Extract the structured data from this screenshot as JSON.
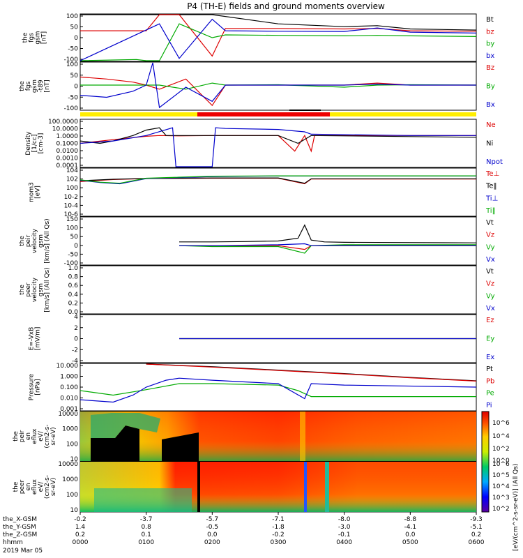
{
  "title": "P4 (TH-E) fields and ground moments overview",
  "time_axis": {
    "row_labels": [
      "the_X-GSM",
      "the_Y-GSM",
      "the_Z-GSM",
      "hhmm"
    ],
    "date": "2019 Mar 05",
    "ticks": [
      {
        "x": "-0.2",
        "y": "1.4",
        "z": "0.2",
        "t": "0000"
      },
      {
        "x": "-3.7",
        "y": "0.8",
        "z": "0.1",
        "t": "0100"
      },
      {
        "x": "-5.7",
        "y": "-0.5",
        "z": "0.0",
        "t": "0200"
      },
      {
        "x": "-7.1",
        "y": "-1.8",
        "z": "-0.2",
        "t": "0300"
      },
      {
        "x": "-8.0",
        "y": "-3.0",
        "z": "-0.1",
        "t": "0400"
      },
      {
        "x": "-8.8",
        "y": "-4.1",
        "z": "0.0",
        "t": "0500"
      },
      {
        "x": "-9.3",
        "y": "-5.1",
        "z": "0.2",
        "t": "0600"
      }
    ]
  },
  "colorbar": {
    "label": "[eV/(cm^2-s-sr-eV)] (All Qs)",
    "ticks1": [
      "10^6",
      "10^4",
      "10^2",
      "10^0"
    ],
    "ticks2": [
      "10^6",
      "10^5",
      "10^4",
      "10^3",
      "10^2"
    ]
  },
  "chart_data": [
    {
      "type": "line",
      "id": "fgs_gsm",
      "ylabel": [
        "the",
        "fgs",
        "gsm",
        "[nT]"
      ],
      "yticks": [
        "100",
        "50",
        "0",
        "-50",
        "-100"
      ],
      "ylim": [
        -100,
        100
      ],
      "series": [
        {
          "name": "Bt",
          "color": "#000000",
          "x": [
            0.0,
            1.0,
            1.2,
            1.5,
            2.0,
            3.0,
            4.0,
            4.5,
            5.0,
            6.0
          ],
          "values": [
            100,
            100,
            100,
            100,
            100,
            60,
            48,
            52,
            38,
            33
          ]
        },
        {
          "name": "bz",
          "color": "#dd0000",
          "x": [
            0.0,
            1.0,
            1.2,
            1.5,
            2.0,
            2.2,
            3.0,
            4.0,
            4.5,
            5.0,
            6.0
          ],
          "values": [
            30,
            30,
            100,
            100,
            -80,
            40,
            40,
            38,
            40,
            30,
            28
          ]
        },
        {
          "name": "by",
          "color": "#00aa00",
          "x": [
            0.0,
            0.85,
            1.0,
            1.2,
            1.5,
            2.0,
            2.2,
            3.0,
            4.0,
            4.5,
            5.0,
            6.0
          ],
          "values": [
            -100,
            -95,
            -100,
            -100,
            60,
            0,
            12,
            10,
            8,
            10,
            8,
            5
          ]
        },
        {
          "name": "bx",
          "color": "#0000cc",
          "x": [
            0.0,
            1.2,
            1.5,
            2.0,
            2.2,
            3.0,
            4.0,
            4.5,
            5.0,
            6.0
          ],
          "values": [
            -100,
            60,
            -90,
            80,
            30,
            28,
            27,
            42,
            24,
            20
          ]
        }
      ]
    },
    {
      "type": "line",
      "id": "fgs_gsm_dipole",
      "ylabel": [
        "the",
        "fgs",
        "gsm",
        "-t89",
        "[nT]"
      ],
      "yticks": [
        "100",
        "50",
        "0",
        "-50",
        "-100"
      ],
      "ylim": [
        -120,
        110
      ],
      "series": [
        {
          "name": "Bz",
          "color": "#dd0000",
          "x": [
            0.0,
            0.4,
            0.8,
            1.0,
            1.2,
            1.6,
            2.0,
            2.2,
            3.0,
            4.0,
            4.5,
            5.0,
            6.0
          ],
          "values": [
            40,
            30,
            15,
            0,
            -20,
            30,
            -100,
            0,
            0,
            0,
            10,
            0,
            0
          ]
        },
        {
          "name": "By",
          "color": "#00aa00",
          "x": [
            0.0,
            0.8,
            1.0,
            1.2,
            1.6,
            2.0,
            2.2,
            3.0,
            4.0,
            4.5,
            5.0,
            6.0
          ],
          "values": [
            0,
            0,
            0,
            0,
            -20,
            10,
            0,
            2,
            -10,
            0,
            2,
            0
          ]
        },
        {
          "name": "Bx",
          "color": "#0000cc",
          "x": [
            0.0,
            0.4,
            0.8,
            1.0,
            1.1,
            1.2,
            1.6,
            2.0,
            2.2,
            3.0,
            4.0,
            4.5,
            5.0,
            6.0
          ],
          "values": [
            -50,
            -60,
            -30,
            0,
            110,
            -110,
            -10,
            -80,
            0,
            0,
            0,
            5,
            0,
            0
          ]
        }
      ]
    },
    {
      "type": "line",
      "id": "density",
      "ylabel": [
        "Density",
        "[1/cc]",
        "[cm-3]"
      ],
      "yticks": [
        "100.0000",
        "10.0000",
        "1.0000",
        "0.1000",
        "0.0100",
        "0.0010",
        "0.0001"
      ],
      "ylog": true,
      "ylim": [
        0.0001,
        100
      ],
      "series": [
        {
          "name": "Ne",
          "color": "#dd0000",
          "x": [
            0.0,
            0.5,
            1.0,
            1.2,
            1.5,
            2.0,
            3.0,
            3.25,
            3.4,
            3.5,
            3.55,
            6.0
          ],
          "values": [
            0.1,
            0.3,
            0.8,
            1.0,
            0.9,
            1.0,
            1.0,
            0.01,
            1.0,
            0.01,
            1.0,
            1.0
          ]
        },
        {
          "name": "Ni",
          "color": "#000000",
          "x": [
            0.0,
            0.3,
            0.5,
            0.8,
            1.0,
            1.2,
            1.3,
            1.5,
            2.0,
            3.0,
            3.3,
            3.5,
            6.0
          ],
          "values": [
            0.2,
            0.1,
            0.2,
            1.0,
            5.0,
            10.0,
            1.0,
            1.0,
            1.0,
            1.0,
            0.1,
            1.0,
            0.6
          ]
        },
        {
          "name": "Npot",
          "color": "#0000cc",
          "x": [
            0.0,
            0.5,
            1.0,
            1.4,
            1.45,
            2.0,
            2.05,
            2.2,
            3.0,
            3.4,
            3.5,
            4.0,
            5.0,
            6.0
          ],
          "values": [
            0.1,
            0.2,
            1.0,
            10.0,
            0.0001,
            0.0001,
            10.0,
            8.0,
            6.0,
            3.0,
            1.5,
            1.3,
            1.0,
            1.0
          ]
        }
      ]
    },
    {
      "type": "line",
      "id": "temperature",
      "ylabel": [
        "mom3",
        "[eV]"
      ],
      "yticks": [
        "10^4",
        "10^2",
        "10^0",
        "10^-2",
        "10^-4",
        "10^-6"
      ],
      "ylog": true,
      "ylim": [
        1e-06,
        100000
      ],
      "series": [
        {
          "name": "Te⊥",
          "color": "#dd0000",
          "x": [
            0.0,
            0.5,
            1.0,
            2.0,
            3.0,
            3.4,
            3.5,
            6.0
          ],
          "values": [
            100,
            300,
            500,
            600,
            600,
            30,
            400,
            400
          ]
        },
        {
          "name": "Te‖",
          "color": "#000000",
          "x": [
            0.0,
            0.5,
            1.0,
            2.0,
            3.0,
            3.4,
            3.5,
            6.0
          ],
          "values": [
            150,
            350,
            550,
            700,
            700,
            40,
            450,
            450
          ]
        },
        {
          "name": "Ti⊥",
          "color": "#0000cc",
          "x": [
            0.0,
            0.3,
            0.6,
            1.0,
            2.0,
            3.0,
            3.5,
            6.0
          ],
          "values": [
            200,
            60,
            30,
            500,
            1500,
            2000,
            2000,
            2000
          ]
        },
        {
          "name": "Ti‖",
          "color": "#00aa00",
          "x": [
            0.0,
            0.3,
            0.6,
            1.0,
            2.0,
            3.0,
            3.5,
            6.0
          ],
          "values": [
            250,
            70,
            40,
            600,
            1800,
            2200,
            2200,
            2200
          ]
        }
      ]
    },
    {
      "type": "line",
      "id": "peir_velocity",
      "ylabel": [
        "the",
        "peir",
        "velocity",
        "gsm",
        "[km/s] (All Qs)"
      ],
      "yticks": [
        "150",
        "100",
        "50",
        "0",
        "-50",
        "-100"
      ],
      "ylim": [
        -100,
        150
      ],
      "series": [
        {
          "name": "Vt",
          "color": "#000000",
          "x": [
            1.5,
            2.0,
            2.5,
            3.0,
            3.3,
            3.4,
            3.5,
            3.7,
            4.0,
            6.0
          ],
          "values": [
            20,
            20,
            22,
            25,
            40,
            110,
            30,
            20,
            18,
            15
          ]
        },
        {
          "name": "Vz",
          "color": "#dd0000",
          "x": [
            1.5,
            2.0,
            3.0,
            3.4,
            3.5,
            4.0,
            6.0
          ],
          "values": [
            0,
            0,
            0,
            -20,
            0,
            0,
            0
          ]
        },
        {
          "name": "Vy",
          "color": "#00aa00",
          "x": [
            1.5,
            2.0,
            3.0,
            3.4,
            3.5,
            4.0,
            6.0
          ],
          "values": [
            0,
            -5,
            -5,
            -40,
            0,
            5,
            5
          ]
        },
        {
          "name": "Vx",
          "color": "#0000cc",
          "x": [
            1.5,
            2.0,
            3.0,
            3.4,
            3.5,
            4.0,
            6.0
          ],
          "values": [
            0,
            0,
            5,
            10,
            0,
            0,
            0
          ]
        }
      ]
    },
    {
      "type": "line",
      "id": "peer_velocity",
      "ylabel": [
        "the",
        "peer",
        "velocity",
        "gsm",
        "[km/s] (All Qs)"
      ],
      "yticks": [
        "1.0",
        "0.8",
        "0.6",
        "0.4",
        "0.2",
        "0.0"
      ],
      "ylim": [
        0,
        1
      ],
      "series": [
        {
          "name": "Vt",
          "color": "#000000",
          "x": [],
          "values": []
        },
        {
          "name": "Vz",
          "color": "#dd0000",
          "x": [],
          "values": []
        },
        {
          "name": "Vy",
          "color": "#00aa00",
          "x": [],
          "values": []
        },
        {
          "name": "Vx",
          "color": "#0000cc",
          "x": [],
          "values": []
        }
      ]
    },
    {
      "type": "line",
      "id": "efield",
      "ylabel": [
        "E=-VxB",
        "[mV/m]"
      ],
      "yticks": [
        "4",
        "2",
        "0",
        "-2",
        "-4"
      ],
      "ylim": [
        -4,
        4
      ],
      "series": [
        {
          "name": "Ez",
          "color": "#dd0000",
          "x": [
            1.5,
            2.0,
            3.0,
            3.4,
            3.5,
            6.0
          ],
          "values": [
            0,
            0,
            0,
            0,
            0,
            0
          ]
        },
        {
          "name": "Ey",
          "color": "#00aa00",
          "x": [
            1.5,
            2.0,
            3.0,
            3.4,
            3.5,
            6.0
          ],
          "values": [
            0,
            0,
            0,
            0,
            0,
            0
          ]
        },
        {
          "name": "Ex",
          "color": "#0000cc",
          "x": [
            1.5,
            2.0,
            3.0,
            3.4,
            3.5,
            6.0
          ],
          "values": [
            0,
            0,
            0,
            0,
            0,
            0
          ]
        }
      ]
    },
    {
      "type": "line",
      "id": "pressure",
      "ylabel": [
        "Pressure",
        "[nPa]"
      ],
      "yticks": [
        "10.000",
        "1.000",
        "0.100",
        "0.010",
        "0.001"
      ],
      "ylog": true,
      "ylim": [
        0.001,
        10
      ],
      "series": [
        {
          "name": "Pt",
          "color": "#000000",
          "x": [
            1.0,
            2.0,
            3.0,
            4.0,
            5.0,
            6.0
          ],
          "values": [
            15,
            6,
            3,
            1.5,
            0.7,
            0.35
          ]
        },
        {
          "name": "Pb",
          "color": "#dd0000",
          "x": [
            1.0,
            2.0,
            3.0,
            4.0,
            5.0,
            6.0
          ],
          "values": [
            14,
            5.5,
            2.8,
            1.4,
            0.65,
            0.33
          ]
        },
        {
          "name": "Pe",
          "color": "#00aa00",
          "x": [
            0.0,
            0.5,
            1.0,
            1.5,
            2.0,
            3.0,
            3.3,
            3.5,
            4.0,
            6.0
          ],
          "values": [
            0.05,
            0.02,
            0.06,
            0.2,
            0.2,
            0.15,
            0.05,
            0.015,
            0.015,
            0.015
          ]
        },
        {
          "name": "Pi",
          "color": "#0000cc",
          "x": [
            0.0,
            0.5,
            0.8,
            1.0,
            1.3,
            1.5,
            2.0,
            3.0,
            3.4,
            3.5,
            4.0,
            6.0
          ],
          "values": [
            0.008,
            0.005,
            0.02,
            0.1,
            0.4,
            0.6,
            0.4,
            0.2,
            0.01,
            0.2,
            0.15,
            0.1
          ]
        }
      ]
    },
    {
      "type": "heatmap",
      "id": "peir_eflux",
      "ylabel": [
        "the",
        "peir",
        "en",
        "eflux",
        "eV/",
        "(cm^2-s-",
        "sr-eV)"
      ],
      "yticks": [
        "10000",
        "1000",
        "100",
        "10"
      ],
      "ylog": true
    },
    {
      "type": "heatmap",
      "id": "peer_eflux",
      "ylabel": [
        "the",
        "peer",
        "en",
        "eflux",
        "eV/",
        "(cm^2-s-",
        "sr-eV)"
      ],
      "yticks": [
        "10000",
        "1000",
        "100",
        "10"
      ],
      "ylog": true
    }
  ]
}
